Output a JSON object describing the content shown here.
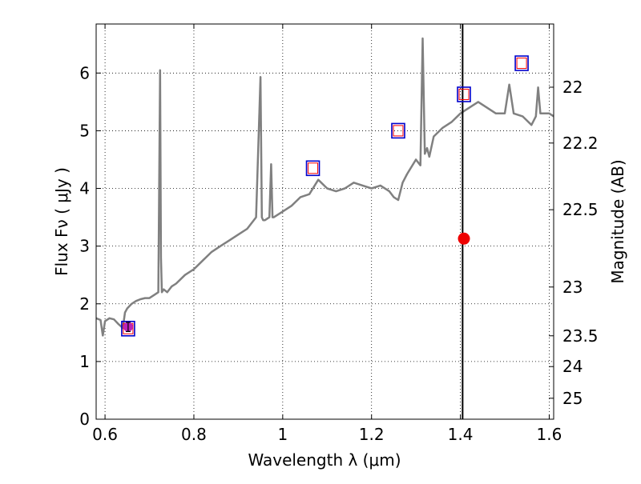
{
  "chart_data": {
    "type": "line",
    "title": "",
    "xlabel": "Wavelength  λ (μm)",
    "ylabel": "Flux  Fν  ( μJy )",
    "y2label": "Magnitude (AB)",
    "xlim": [
      0.58,
      1.61
    ],
    "ylim": [
      0,
      6.85
    ],
    "grid": true,
    "xticks": [
      0.6,
      0.8,
      1.0,
      1.2,
      1.4,
      1.6
    ],
    "xtick_labels": [
      "0.6",
      "0.8",
      "1",
      "1.2",
      "1.4",
      "1.6"
    ],
    "yticks": [
      0,
      1,
      2,
      3,
      4,
      5,
      6
    ],
    "ytick_labels": [
      "0",
      "1",
      "2",
      "3",
      "4",
      "5",
      "6"
    ],
    "y2ticks": [
      22,
      22.2,
      22.5,
      23,
      23.5,
      24,
      25
    ],
    "y2tick_labels": [
      "22",
      "22.2",
      "22.5",
      "23",
      "23.5",
      "24",
      "25"
    ],
    "vertical_line_x": 1.405,
    "colors": {
      "spectrum": "#808080",
      "box_outer": "#0000cc",
      "box_inner": "#ff0000",
      "marker": "#ee0000",
      "purple_point": "#bb22bb",
      "vline": "#000000"
    },
    "series": [
      {
        "name": "model spectrum",
        "x": [
          0.58,
          0.59,
          0.595,
          0.6,
          0.61,
          0.62,
          0.63,
          0.64,
          0.645,
          0.65,
          0.66,
          0.67,
          0.68,
          0.69,
          0.7,
          0.71,
          0.72,
          0.724,
          0.726,
          0.728,
          0.732,
          0.74,
          0.75,
          0.76,
          0.78,
          0.8,
          0.82,
          0.84,
          0.86,
          0.88,
          0.9,
          0.92,
          0.94,
          0.95,
          0.953,
          0.956,
          0.96,
          0.97,
          0.974,
          0.977,
          0.98,
          1.0,
          1.02,
          1.04,
          1.06,
          1.08,
          1.1,
          1.12,
          1.14,
          1.16,
          1.18,
          1.2,
          1.22,
          1.24,
          1.25,
          1.26,
          1.27,
          1.28,
          1.3,
          1.31,
          1.315,
          1.32,
          1.325,
          1.33,
          1.34,
          1.36,
          1.38,
          1.4,
          1.42,
          1.44,
          1.46,
          1.48,
          1.5,
          1.51,
          1.52,
          1.54,
          1.56,
          1.57,
          1.575,
          1.58,
          1.6,
          1.61
        ],
        "y": [
          1.75,
          1.72,
          1.45,
          1.7,
          1.75,
          1.73,
          1.65,
          1.58,
          1.85,
          1.92,
          2.0,
          2.05,
          2.08,
          2.1,
          2.1,
          2.15,
          2.2,
          6.05,
          2.8,
          2.2,
          2.25,
          2.2,
          2.3,
          2.35,
          2.5,
          2.6,
          2.75,
          2.9,
          3.0,
          3.1,
          3.2,
          3.3,
          3.5,
          5.93,
          3.5,
          3.45,
          3.45,
          3.5,
          4.42,
          3.5,
          3.5,
          3.6,
          3.7,
          3.85,
          3.9,
          4.15,
          4.0,
          3.95,
          4.0,
          4.1,
          4.05,
          4.0,
          4.05,
          3.95,
          3.85,
          3.8,
          4.1,
          4.25,
          4.5,
          4.4,
          6.6,
          4.6,
          4.7,
          4.55,
          4.9,
          5.05,
          5.15,
          5.3,
          5.4,
          5.5,
          5.4,
          5.3,
          5.3,
          5.8,
          5.3,
          5.25,
          5.1,
          5.25,
          5.75,
          5.3,
          5.3,
          5.25
        ]
      }
    ],
    "photometry_boxes": [
      {
        "x": 0.652,
        "y": 1.57
      },
      {
        "x": 1.068,
        "y": 4.35
      },
      {
        "x": 1.26,
        "y": 5.0
      },
      {
        "x": 1.408,
        "y": 5.63
      },
      {
        "x": 1.538,
        "y": 6.17
      }
    ],
    "red_point": {
      "x": 1.408,
      "y": 3.13
    },
    "purple_point": {
      "x": 0.652,
      "y": 1.6,
      "err": 0.08
    }
  }
}
